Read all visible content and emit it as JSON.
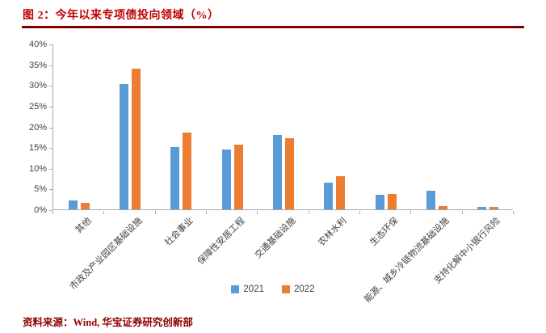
{
  "header": {
    "title": "图 2：今年以来专项债投向领域（%）"
  },
  "footer": {
    "source": "资料来源：Wind, 华宝证券研究创新部"
  },
  "colors": {
    "title_red": "#C00000",
    "rule_dark_red": "#7F0000",
    "source_dark_red": "#8B0000",
    "series_2021_blue": "#5B9BD5",
    "series_2022_orange": "#ED7D31",
    "axis_gray": "#A6A6A6"
  },
  "chart_data": {
    "type": "bar",
    "title": "图 2：今年以来专项债投向领域（%）",
    "categories": [
      "其他",
      "市政及产业园区基础设施",
      "社会事业",
      "保障性安居工程",
      "交通基础设施",
      "农林水利",
      "生态环保",
      "能源、城乡冷链物流基础设施",
      "支持化解中小银行风险"
    ],
    "series": [
      {
        "name": "2021",
        "color": "#5B9BD5",
        "values": [
          2.1,
          30.3,
          15.0,
          14.4,
          17.9,
          6.4,
          3.5,
          4.5,
          0.5
        ]
      },
      {
        "name": "2022",
        "color": "#ED7D31",
        "values": [
          1.6,
          34.0,
          18.5,
          15.6,
          17.2,
          8.0,
          3.7,
          0.8,
          0.5
        ]
      }
    ],
    "xlabel": "",
    "ylabel": "",
    "ylim": [
      0,
      40
    ],
    "yticks": [
      "0%",
      "5%",
      "10%",
      "15%",
      "20%",
      "25%",
      "30%",
      "35%",
      "40%"
    ],
    "grid": false,
    "legend_position": "bottom"
  }
}
